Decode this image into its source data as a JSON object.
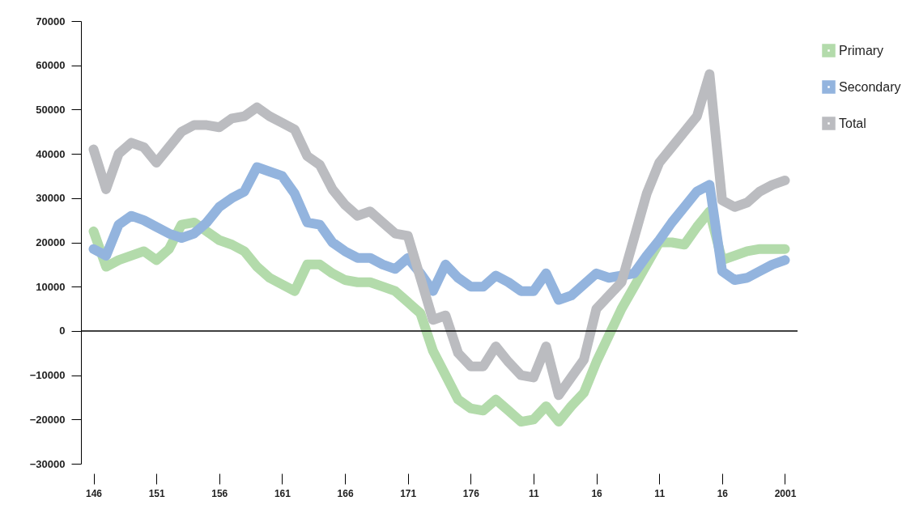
{
  "chart_data": {
    "type": "line",
    "categories": [
      "146",
      null,
      null,
      null,
      null,
      "151",
      null,
      null,
      null,
      null,
      "156",
      null,
      null,
      null,
      null,
      "161",
      null,
      null,
      null,
      null,
      "166",
      null,
      null,
      null,
      null,
      "171",
      null,
      null,
      null,
      null,
      "176",
      null,
      null,
      null,
      null,
      "11",
      null,
      null,
      null,
      null,
      "16",
      null,
      null,
      null,
      null,
      "11",
      null,
      null,
      null,
      null,
      "16",
      null,
      null,
      null,
      null,
      "2001"
    ],
    "ylim": [
      -30000,
      70000
    ],
    "yticks": [
      -30000,
      -20000,
      -10000,
      0,
      10000,
      20000,
      30000,
      40000,
      50000,
      60000,
      70000
    ],
    "grid": false,
    "legend": "top right",
    "ref_lines": [
      {
        "axis": "y",
        "value": 0,
        "color": "#000000"
      }
    ],
    "series": [
      {
        "name": "Primary",
        "color": "#b3dbab",
        "values": [
          22500,
          14500,
          16000,
          17000,
          18000,
          16000,
          18500,
          24000,
          24500,
          22500,
          20500,
          19500,
          18000,
          14500,
          12000,
          10500,
          9000,
          15000,
          15000,
          13000,
          11500,
          11000,
          11000,
          10000,
          9000,
          6500,
          4000,
          -4500,
          -10000,
          -15500,
          -17500,
          -18000,
          -15500,
          -18000,
          -20500,
          -20000,
          -17000,
          -20500,
          -17000,
          -14000,
          -7000,
          -1000,
          5000,
          10000,
          15000,
          20000,
          20000,
          19500,
          23500,
          27000,
          16000,
          17000,
          18000,
          18500,
          18500,
          18500
        ]
      },
      {
        "name": "Secondary",
        "color": "#93b4de",
        "values": [
          18500,
          17000,
          24000,
          26000,
          25000,
          23500,
          22000,
          21000,
          22000,
          24500,
          28000,
          30000,
          31500,
          37000,
          36000,
          35000,
          31000,
          24500,
          24000,
          20000,
          18000,
          16500,
          16500,
          15000,
          14000,
          16500,
          13000,
          9000,
          15000,
          12000,
          10000,
          10000,
          12500,
          11000,
          9000,
          9000,
          13000,
          7000,
          8000,
          10500,
          13000,
          12000,
          12500,
          13000,
          17000,
          20500,
          24500,
          28000,
          31500,
          33000,
          13500,
          11500,
          12000,
          13500,
          15000,
          16000
        ]
      },
      {
        "name": "Total",
        "color": "#bbbcc0",
        "values": [
          41000,
          32000,
          40000,
          42500,
          41500,
          38000,
          41500,
          45000,
          46500,
          46500,
          46000,
          48000,
          48500,
          50500,
          48500,
          47000,
          45500,
          39500,
          37500,
          32000,
          28500,
          26000,
          27000,
          24500,
          22000,
          21500,
          12000,
          2500,
          3500,
          -5000,
          -8000,
          -8000,
          -3500,
          -7000,
          -10000,
          -10500,
          -3500,
          -14500,
          -10500,
          -6500,
          5000,
          8000,
          11000,
          21000,
          31000,
          38000,
          41500,
          45000,
          48500,
          58000,
          29500,
          28000,
          29000,
          31500,
          33000,
          34000
        ]
      }
    ]
  }
}
